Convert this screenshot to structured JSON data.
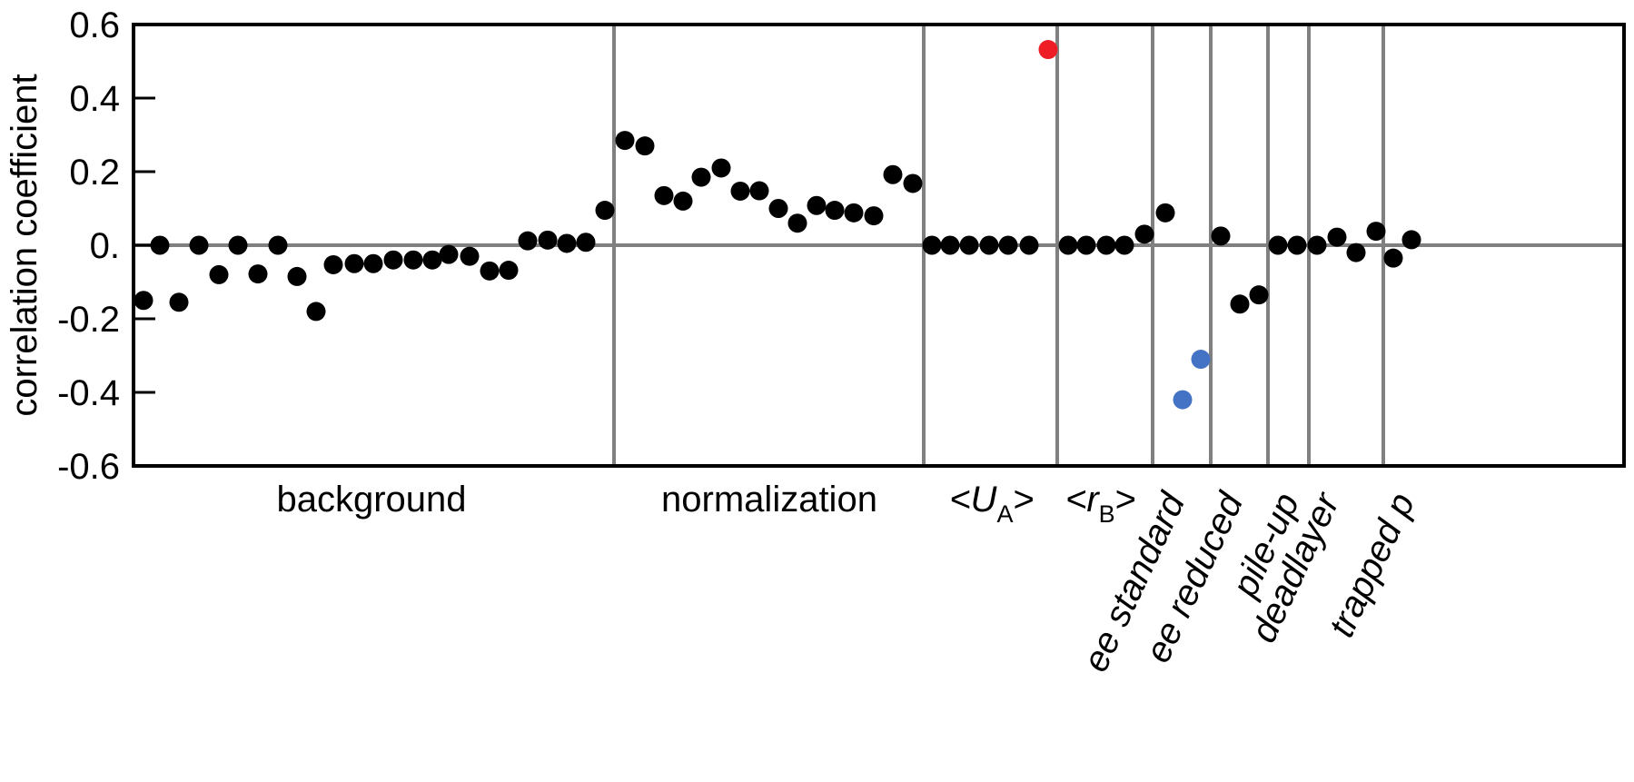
{
  "chart_data": {
    "type": "scatter",
    "title": "",
    "xlabel": "",
    "ylabel": "correlation coefficient",
    "ylim": [
      -0.6,
      0.6
    ],
    "yticks": [
      {
        "value": 0.6,
        "label": "0.6"
      },
      {
        "value": 0.4,
        "label": "0.4"
      },
      {
        "value": 0.2,
        "label": "0.2"
      },
      {
        "value": 0.0,
        "label": "0."
      },
      {
        "value": -0.2,
        "label": "-0.2"
      },
      {
        "value": -0.4,
        "label": "-0.4"
      },
      {
        "value": -0.6,
        "label": "-0.6"
      }
    ],
    "grid": false,
    "colors": {
      "default": "#000000",
      "red": "#ee1c25",
      "blue": "#4472c4",
      "rule": "#808080"
    },
    "groups": [
      {
        "id": "background",
        "label": "background",
        "label_rotated": false,
        "points": [
          -0.15,
          0.0,
          -0.155,
          0.0,
          -0.08,
          0.0,
          -0.078,
          0.0,
          -0.085,
          -0.18,
          -0.053,
          -0.05,
          -0.05,
          -0.04,
          -0.04,
          -0.04,
          -0.025,
          -0.03,
          -0.07,
          -0.068,
          0.012,
          0.014,
          0.005,
          0.008,
          0.095
        ],
        "colors": []
      },
      {
        "id": "normalization",
        "label": "normalization",
        "label_rotated": false,
        "points": [
          0.285,
          0.27,
          0.135,
          0.12,
          0.185,
          0.21,
          0.147,
          0.148,
          0.1,
          0.06,
          0.108,
          0.095,
          0.088,
          0.08,
          0.192,
          0.168
        ],
        "colors": []
      },
      {
        "id": "UA",
        "label": "<U",
        "label_sub": "A",
        "label_after": ">",
        "label_rotated": false,
        "points": [
          0.0,
          0.0,
          0.0,
          0.0,
          0.0,
          0.0,
          0.532
        ],
        "colors": [
          "#000000",
          "#000000",
          "#000000",
          "#000000",
          "#000000",
          "#000000",
          "#ee1c25"
        ]
      },
      {
        "id": "rB",
        "label": "<r",
        "label_sub": "B",
        "label_after": ">",
        "label_rotated": false,
        "points": [
          0.0,
          0.0,
          0.0,
          0.0,
          0.03
        ],
        "colors": []
      },
      {
        "id": "ee-standard",
        "label": "ee standard",
        "label_rotated": true,
        "points": [
          0.088,
          -0.42
        ],
        "colors": [
          "#000000",
          "#4472c4"
        ]
      },
      {
        "id": "ee-reduced",
        "label": "ee reduced",
        "label_rotated": true,
        "points": [
          -0.31,
          0.025,
          -0.16,
          -0.135
        ],
        "colors": [
          "#4472c4",
          "#000000",
          "#000000",
          "#000000"
        ]
      },
      {
        "id": "pile-up",
        "label": "pile-up",
        "label_rotated": true,
        "points": [
          0.0,
          0.0
        ],
        "colors": []
      },
      {
        "id": "deadlayer",
        "label": "deadlayer",
        "label_rotated": true,
        "points": [
          0.0,
          0.022,
          -0.02
        ],
        "colors": []
      },
      {
        "id": "trapped-p",
        "label": "trapped p",
        "label_rotated": true,
        "points": [
          0.038,
          -0.035,
          0.015
        ],
        "colors": []
      }
    ]
  }
}
